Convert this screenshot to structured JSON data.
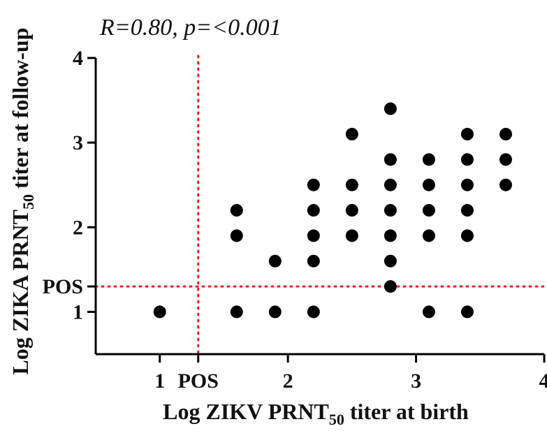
{
  "chart_data": {
    "type": "scatter",
    "annotation": "R=0.80, p=<0.001",
    "xlabel": "Log ZIKV PRNT",
    "xlabel_sub": "50",
    "xlabel_suffix": " titer at birth",
    "ylabel": "Log ZIKA PRNT",
    "ylabel_sub": "50",
    "ylabel_suffix": " titer at follow-up",
    "xlim": [
      0.5,
      4
    ],
    "ylim": [
      0.5,
      4
    ],
    "x_ticks": [
      {
        "value": 1,
        "label": "1"
      },
      {
        "value": 1.3,
        "label": "POS"
      },
      {
        "value": 2,
        "label": "2"
      },
      {
        "value": 3,
        "label": "3"
      },
      {
        "value": 4,
        "label": "4"
      }
    ],
    "y_ticks": [
      {
        "value": 1,
        "label": "1"
      },
      {
        "value": 1.3,
        "label": "POS"
      },
      {
        "value": 2,
        "label": "2"
      },
      {
        "value": 3,
        "label": "3"
      },
      {
        "value": 4,
        "label": "4"
      }
    ],
    "reference_lines": [
      {
        "axis": "x",
        "value": 1.3,
        "color": "#e02020",
        "style": "dotted"
      },
      {
        "axis": "y",
        "value": 1.3,
        "color": "#e02020",
        "style": "dotted"
      }
    ],
    "marker_color": "#000000",
    "axis_color": "#000000",
    "grid": false,
    "legend": "none",
    "points": [
      {
        "x": 1.0,
        "y": 1.0
      },
      {
        "x": 1.6,
        "y": 1.0
      },
      {
        "x": 1.6,
        "y": 1.9
      },
      {
        "x": 1.6,
        "y": 2.2
      },
      {
        "x": 1.9,
        "y": 1.0
      },
      {
        "x": 1.9,
        "y": 1.6
      },
      {
        "x": 2.2,
        "y": 1.0
      },
      {
        "x": 2.2,
        "y": 1.6
      },
      {
        "x": 2.2,
        "y": 1.9
      },
      {
        "x": 2.2,
        "y": 2.2
      },
      {
        "x": 2.2,
        "y": 2.5
      },
      {
        "x": 2.5,
        "y": 1.9
      },
      {
        "x": 2.5,
        "y": 2.2
      },
      {
        "x": 2.5,
        "y": 2.5
      },
      {
        "x": 2.5,
        "y": 3.1
      },
      {
        "x": 2.8,
        "y": 1.3
      },
      {
        "x": 2.8,
        "y": 1.6
      },
      {
        "x": 2.8,
        "y": 1.9
      },
      {
        "x": 2.8,
        "y": 2.2
      },
      {
        "x": 2.8,
        "y": 2.5
      },
      {
        "x": 2.8,
        "y": 2.8
      },
      {
        "x": 2.8,
        "y": 3.4
      },
      {
        "x": 3.1,
        "y": 1.0
      },
      {
        "x": 3.1,
        "y": 1.9
      },
      {
        "x": 3.1,
        "y": 2.2
      },
      {
        "x": 3.1,
        "y": 2.5
      },
      {
        "x": 3.1,
        "y": 2.8
      },
      {
        "x": 3.4,
        "y": 1.0
      },
      {
        "x": 3.4,
        "y": 1.9
      },
      {
        "x": 3.4,
        "y": 2.2
      },
      {
        "x": 3.4,
        "y": 2.5
      },
      {
        "x": 3.4,
        "y": 2.8
      },
      {
        "x": 3.4,
        "y": 3.1
      },
      {
        "x": 3.7,
        "y": 2.5
      },
      {
        "x": 3.7,
        "y": 2.8
      },
      {
        "x": 3.7,
        "y": 3.1
      }
    ]
  }
}
